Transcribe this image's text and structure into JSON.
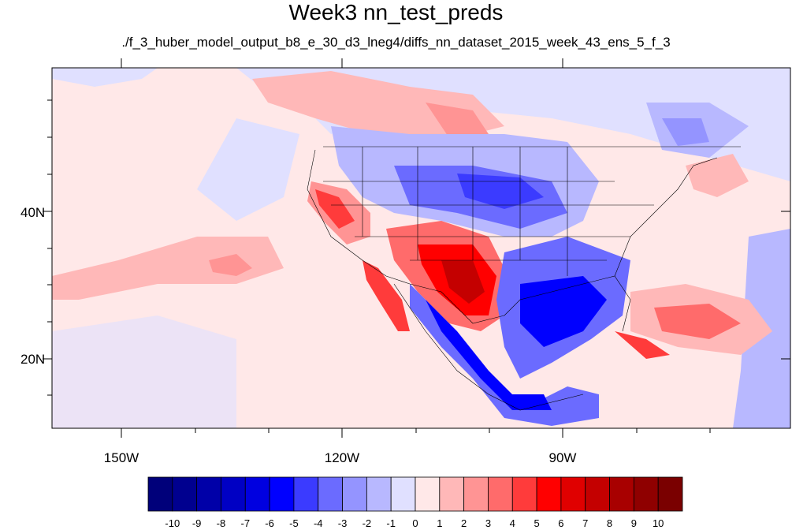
{
  "title": "Week3 nn_test_preds",
  "subtitle": "./f_3_huber_model_output_b8_e_30_d3_lneg4/diffs_nn_dataset_2015_week_43_ens_5_f_3",
  "lon_labels": [
    "150W",
    "120W",
    "90W"
  ],
  "lat_labels": [
    "40N",
    "20N"
  ],
  "colorbar": {
    "labels": [
      "-10",
      "-9",
      "-8",
      "-7",
      "-6",
      "-5",
      "-4",
      "-3",
      "-2",
      "-1",
      "0",
      "1",
      "2",
      "3",
      "4",
      "5",
      "6",
      "7",
      "8",
      "9",
      "10"
    ],
    "colors": [
      "#00007a",
      "#00008f",
      "#0000a8",
      "#0000c4",
      "#0000e0",
      "#0000ff",
      "#3b3bff",
      "#6b6bff",
      "#9494ff",
      "#b8b8ff",
      "#e0e0ff",
      "#ffe8e8",
      "#ffb8b8",
      "#ff9494",
      "#ff6b6b",
      "#ff3b3b",
      "#ff0000",
      "#e00000",
      "#c40000",
      "#a80000",
      "#8f0000",
      "#7a0000"
    ]
  }
}
